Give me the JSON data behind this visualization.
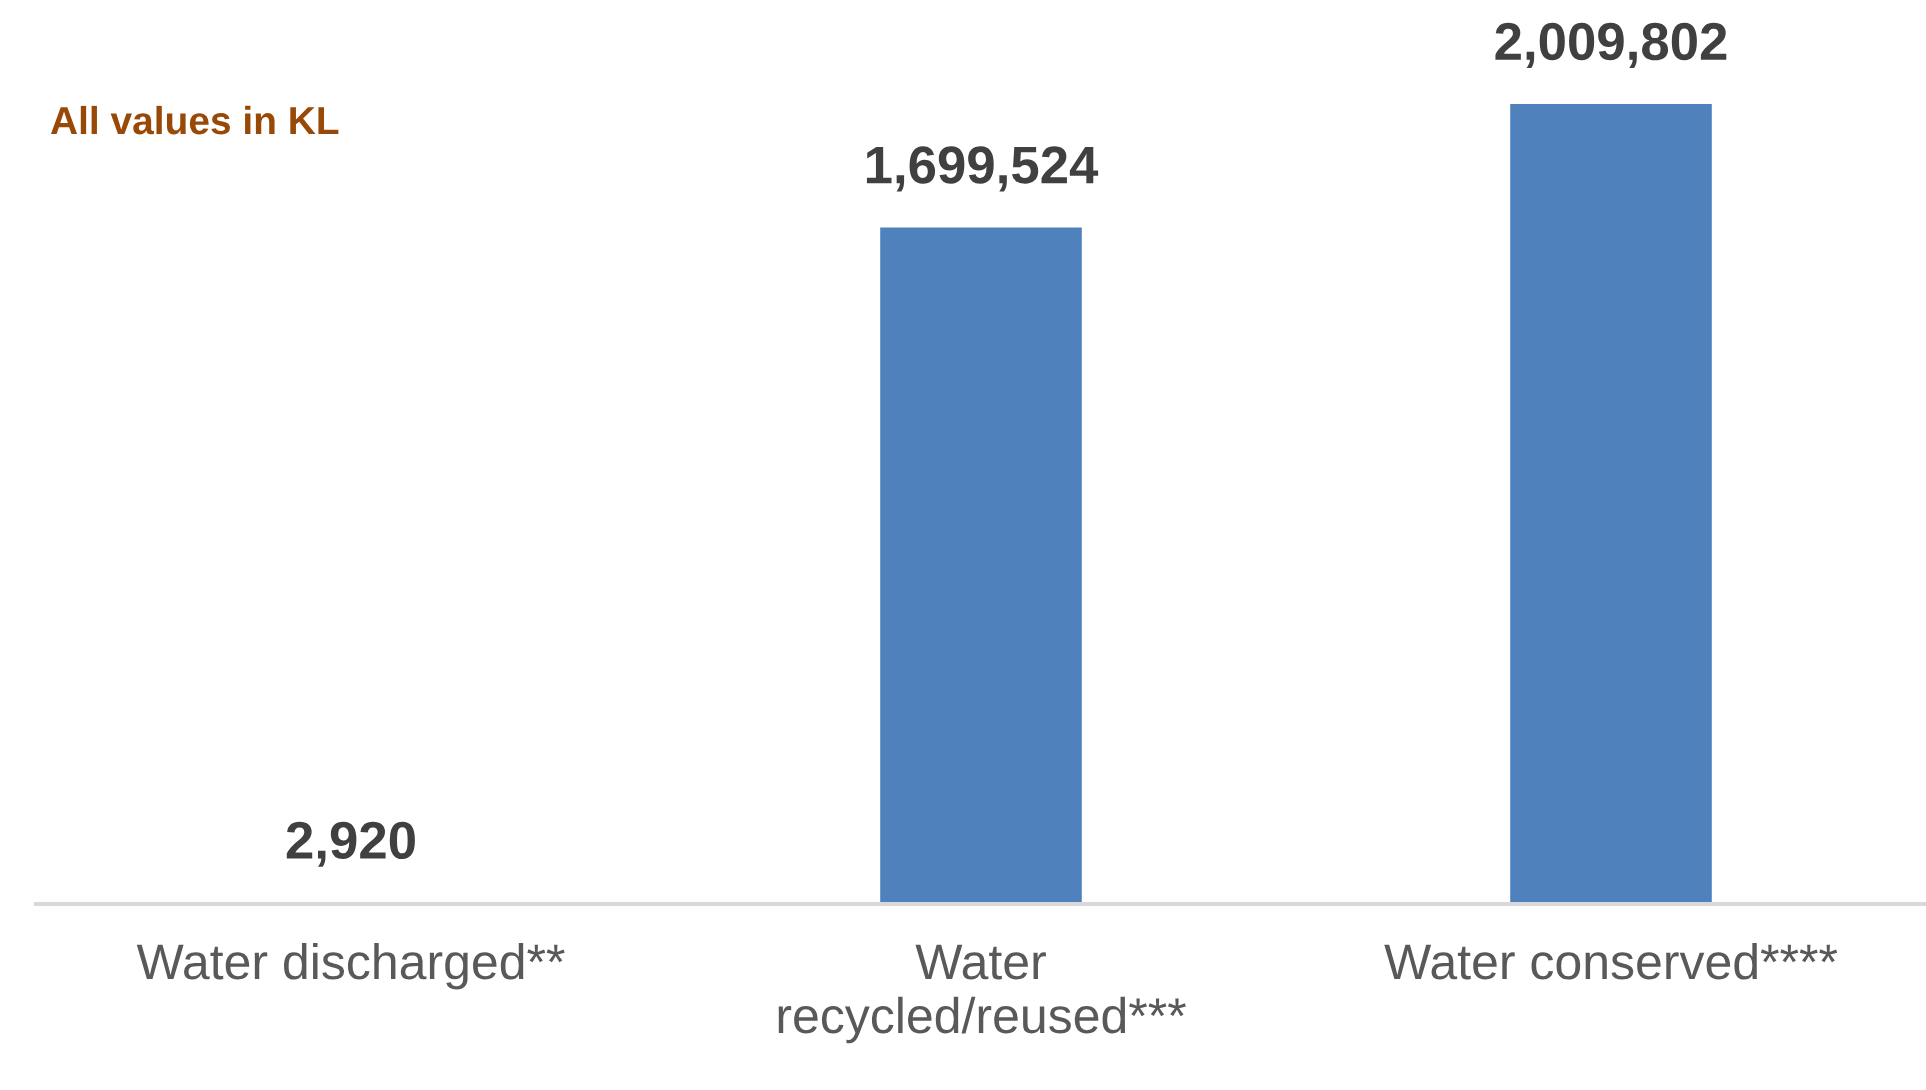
{
  "chart_data": {
    "type": "bar",
    "categories": [
      "Water discharged**",
      "Water\nrecycled/reused***",
      "Water conserved****"
    ],
    "values": [
      2920,
      1699524,
      2009802
    ],
    "color": "#4f81bd",
    "value_labels": [
      "2,920",
      "1,699,524",
      "2,009,802"
    ],
    "annotations": [
      "All values in KL"
    ],
    "grid": false,
    "legend": false
  }
}
